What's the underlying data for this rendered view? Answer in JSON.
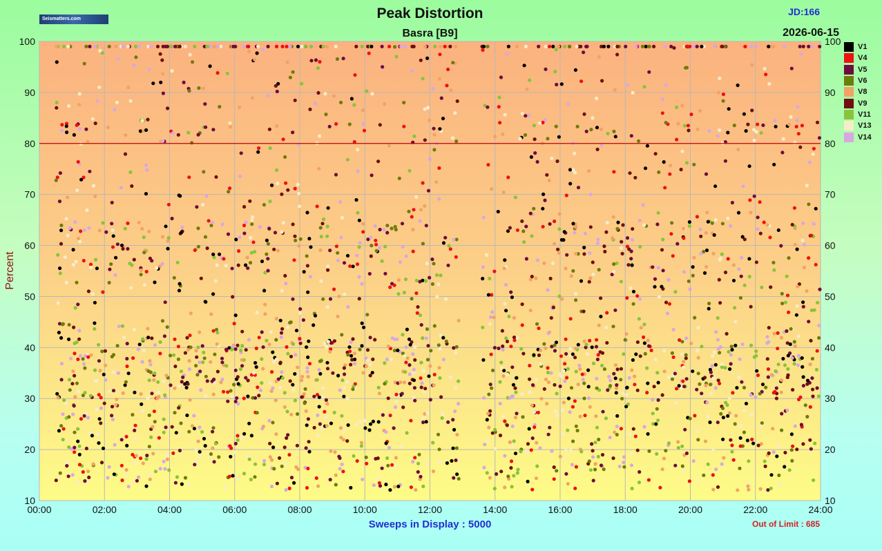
{
  "title": "Peak Distortion",
  "subtitle": "Basra  [B9]",
  "jd_label": "JD:166",
  "date_label": "2026-06-15",
  "logo_text": "Seismatters.com",
  "sweeps_label": "Sweeps in Display : ",
  "sweeps_value": "5000",
  "out_of_limit_label": "Out of Limit : 685",
  "chart_data": {
    "type": "scatter",
    "ylabel": "Percent",
    "xlim": [
      "00:00",
      "24:00"
    ],
    "ylim": [
      10,
      100
    ],
    "x_ticks": [
      "00:00",
      "02:00",
      "04:00",
      "06:00",
      "08:00",
      "10:00",
      "12:00",
      "14:00",
      "16:00",
      "18:00",
      "20:00",
      "22:00",
      "24:00"
    ],
    "y_ticks": [
      10,
      20,
      30,
      40,
      50,
      60,
      70,
      80,
      90,
      100
    ],
    "limit_line": 80,
    "grid": true,
    "legend_position": "right",
    "series": [
      {
        "name": "V1",
        "color": "#000000"
      },
      {
        "name": "V4",
        "color": "#ee1111"
      },
      {
        "name": "V5",
        "color": "#6e0c3c"
      },
      {
        "name": "V6",
        "color": "#6e7c0c"
      },
      {
        "name": "V8",
        "color": "#f2a266"
      },
      {
        "name": "V9",
        "color": "#6e1010"
      },
      {
        "name": "V11",
        "color": "#88c43a"
      },
      {
        "name": "V13",
        "color": "#f8ecc8"
      },
      {
        "name": "V14",
        "color": "#d8a8e0"
      }
    ]
  }
}
